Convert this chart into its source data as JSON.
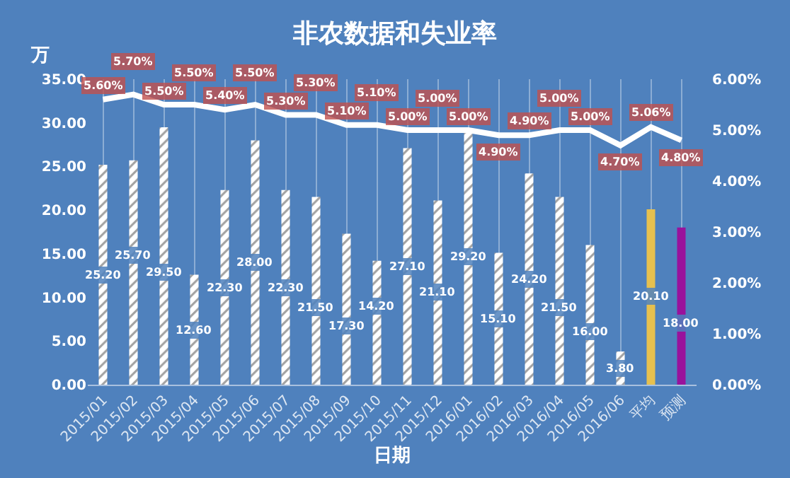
{
  "chart_data": {
    "type": "bar",
    "title": "非农数据和失业率",
    "xlabel": "日期",
    "ylabel": "万",
    "categories": [
      "2015/01",
      "2015/02",
      "2015/03",
      "2015/04",
      "2015/05",
      "2015/06",
      "2015/07",
      "2015/08",
      "2015/09",
      "2015/10",
      "2015/11",
      "2015/12",
      "2016/01",
      "2016/02",
      "2016/03",
      "2016/04",
      "2016/05",
      "2016/06",
      "平均",
      "预测"
    ],
    "series": [
      {
        "color": "#ffffff",
        "colors": [
          "#ffffff",
          "#ffffff",
          "#ffffff",
          "#ffffff",
          "#ffffff",
          "#ffffff",
          "#ffffff",
          "#ffffff",
          "#ffffff",
          "#ffffff",
          "#ffffff",
          "#ffffff",
          "#ffffff",
          "#ffffff",
          "#ffffff",
          "#ffffff",
          "#ffffff",
          "#ffffff",
          "#e6c04f",
          "#99129c"
        ],
        "values": [
          25.2,
          25.7,
          29.5,
          12.6,
          22.3,
          28.0,
          22.3,
          21.5,
          17.3,
          14.2,
          27.1,
          21.1,
          29.2,
          15.1,
          24.2,
          21.5,
          16.0,
          3.8,
          20.1,
          18.0
        ],
        "value_labels": [
          "25.20",
          "25.70",
          "29.50",
          "12.60",
          "22.30",
          "28.00",
          "22.30",
          "21.50",
          "17.30",
          "14.20",
          "27.10",
          "21.10",
          "29.20",
          "15.10",
          "24.20",
          "21.50",
          "16.00",
          "3.80",
          "20.10",
          "18.00"
        ]
      },
      {
        "type": "line",
        "axis": "y2",
        "color": "#ffffff",
        "values": [
          5.6,
          5.7,
          5.5,
          5.5,
          5.4,
          5.5,
          5.3,
          5.3,
          5.1,
          5.1,
          5.0,
          5.0,
          5.0,
          4.9,
          4.9,
          5.0,
          5.0,
          4.7,
          5.06,
          4.8
        ],
        "value_labels": [
          "5.60%",
          "5.70%",
          "5.50%",
          "5.50%",
          "5.40%",
          "5.50%",
          "5.30%",
          "5.30%",
          "5.10%",
          "5.10%",
          "5.00%",
          "5.00%",
          "5.00%",
          "4.90%",
          "4.90%",
          "5.00%",
          "5.00%",
          "4.70%",
          "5.06%",
          "4.80%"
        ]
      }
    ],
    "ylim": [
      0,
      35
    ],
    "yticks": [
      {
        "value": 0,
        "label": "0.00"
      },
      {
        "value": 5,
        "label": "5.00"
      },
      {
        "value": 10,
        "label": "10.00"
      },
      {
        "value": 15,
        "label": "15.00"
      },
      {
        "value": 20,
        "label": "20.00"
      },
      {
        "value": 25,
        "label": "25.00"
      },
      {
        "value": 30,
        "label": "30.00"
      },
      {
        "value": 35,
        "label": "35.00"
      }
    ],
    "y2lim": [
      0,
      6
    ],
    "y2ticks": [
      {
        "value": 0,
        "label": "0.00%"
      },
      {
        "value": 1,
        "label": "1.00%"
      },
      {
        "value": 2,
        "label": "2.00%"
      },
      {
        "value": 3,
        "label": "3.00%"
      },
      {
        "value": 4,
        "label": "4.00%"
      },
      {
        "value": 5,
        "label": "5.00%"
      },
      {
        "value": 6,
        "label": "6.00%"
      }
    ],
    "grid": "x",
    "legend": false,
    "marker": "none"
  }
}
